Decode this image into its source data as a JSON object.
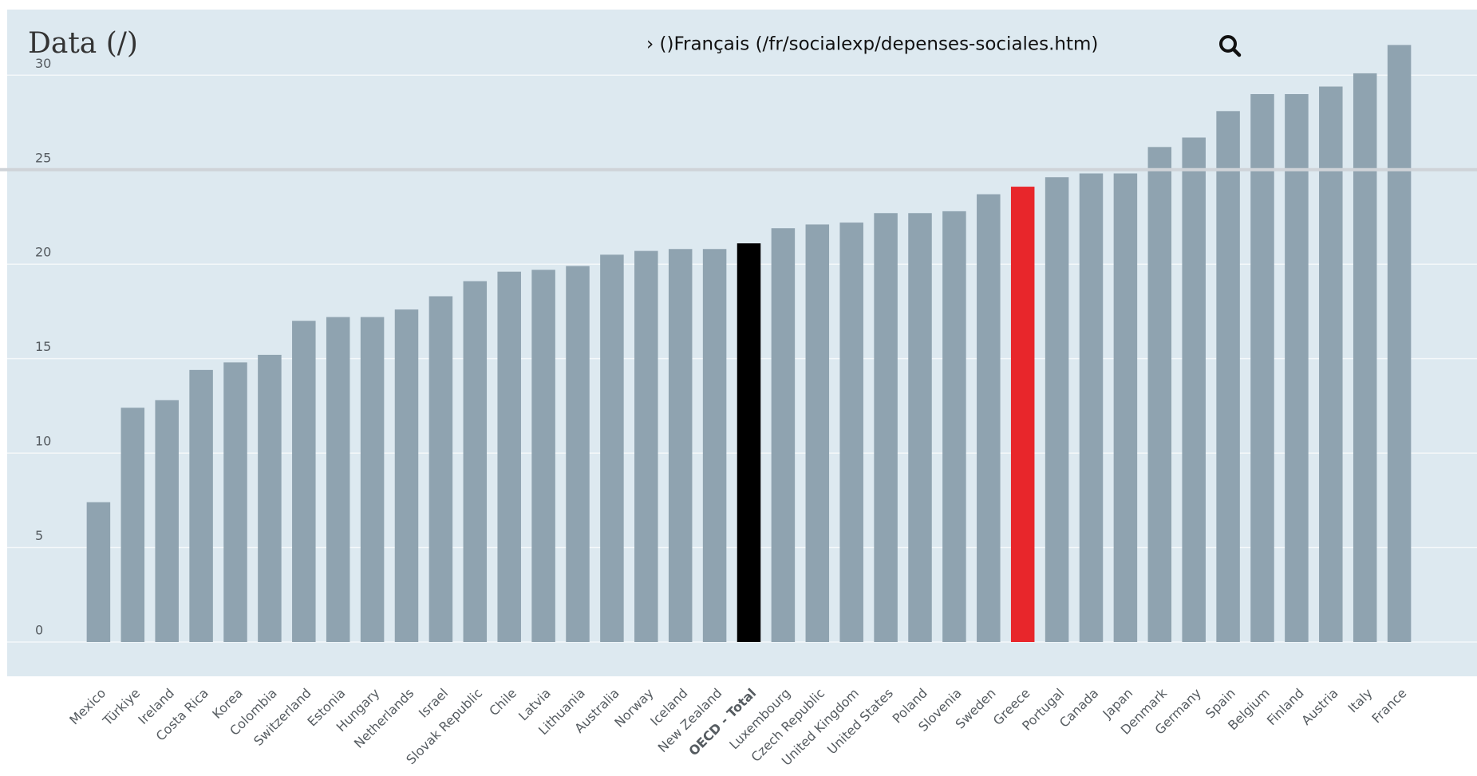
{
  "header": {
    "title": "Data (/)",
    "link": "› ()Français (/fr/socialexp/depenses-sociales.htm)"
  },
  "chart_data": {
    "type": "bar",
    "categories": [
      "Mexico",
      "Türkiye",
      "Ireland",
      "Costa Rica",
      "Korea",
      "Colombia",
      "Switzerland",
      "Estonia",
      "Hungary",
      "Netherlands",
      "Israel",
      "Slovak Republic",
      "Chile",
      "Latvia",
      "Lithuania",
      "Australia",
      "Norway",
      "Iceland",
      "New Zealand",
      "OECD - Total",
      "Luxembourg",
      "Czech Republic",
      "United Kingdom",
      "United States",
      "Poland",
      "Slovenia",
      "Sweden",
      "Greece",
      "Portugal",
      "Canada",
      "Japan",
      "Denmark",
      "Germany",
      "Spain",
      "Belgium",
      "Finland",
      "Austria",
      "Italy",
      "France"
    ],
    "values": [
      7.4,
      12.4,
      12.8,
      14.4,
      14.8,
      15.2,
      17.0,
      17.2,
      17.2,
      17.6,
      18.3,
      19.1,
      19.6,
      19.7,
      19.9,
      20.5,
      20.7,
      20.8,
      20.8,
      21.1,
      21.9,
      22.1,
      22.2,
      22.7,
      22.7,
      22.8,
      23.7,
      24.1,
      24.6,
      24.8,
      24.8,
      26.2,
      26.7,
      28.1,
      29.0,
      29.0,
      29.4,
      30.1,
      31.6
    ],
    "color": "#8fa3b0",
    "colors": [
      "#8fa3b0",
      "#8fa3b0",
      "#8fa3b0",
      "#8fa3b0",
      "#8fa3b0",
      "#8fa3b0",
      "#8fa3b0",
      "#8fa3b0",
      "#8fa3b0",
      "#8fa3b0",
      "#8fa3b0",
      "#8fa3b0",
      "#8fa3b0",
      "#8fa3b0",
      "#8fa3b0",
      "#8fa3b0",
      "#8fa3b0",
      "#8fa3b0",
      "#8fa3b0",
      "#000000",
      "#8fa3b0",
      "#8fa3b0",
      "#8fa3b0",
      "#8fa3b0",
      "#8fa3b0",
      "#8fa3b0",
      "#8fa3b0",
      "#e8262b",
      "#8fa3b0",
      "#8fa3b0",
      "#8fa3b0",
      "#8fa3b0",
      "#8fa3b0",
      "#8fa3b0",
      "#8fa3b0",
      "#8fa3b0",
      "#8fa3b0",
      "#8fa3b0",
      "#8fa3b0"
    ],
    "ylim": [
      0,
      32
    ],
    "yticks": [
      0,
      5,
      10,
      15,
      20,
      25,
      30
    ],
    "grid": true,
    "reference_line": 25
  }
}
